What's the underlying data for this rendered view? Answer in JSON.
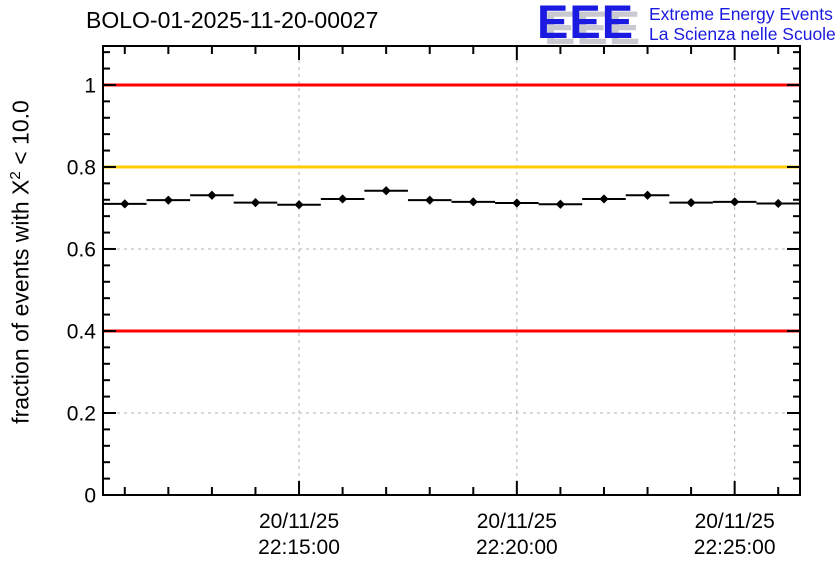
{
  "logo": {
    "letters": "EEE",
    "tagline1": "Extreme Energy Events",
    "tagline2": "La Scienza nelle Scuole",
    "text_color": "#1a1ae0",
    "shadow_color": "#c9c9d2"
  },
  "chart_data": {
    "type": "scatter",
    "title": "BOLO-01-2025-11-20-00027",
    "ylabel": "fraction of events with X² < 10.0",
    "ylabel_prefix": "fraction of events with X",
    "ylabel_sup": "2",
    "ylabel_suffix": " < 10.0",
    "xlabel": "",
    "ylim": [
      0,
      1.095
    ],
    "xlim_minutes": [
      0,
      16
    ],
    "grid": "dashed-at-major-ticks",
    "legend": "none",
    "axis_color": "#000000",
    "grid_color": "#b0b0b0",
    "y_ticks_major": [
      {
        "v": 0.0,
        "label": "0"
      },
      {
        "v": 0.2,
        "label": "0.2"
      },
      {
        "v": 0.4,
        "label": "0.4"
      },
      {
        "v": 0.6,
        "label": "0.6"
      },
      {
        "v": 0.8,
        "label": "0.8"
      },
      {
        "v": 1.0,
        "label": "1"
      }
    ],
    "y_minor_step": 0.04,
    "x_ticks_major": [
      {
        "m": 4.5,
        "date": "20/11/25",
        "time": "22:15:00"
      },
      {
        "m": 9.5,
        "date": "20/11/25",
        "time": "22:20:00"
      },
      {
        "m": 14.5,
        "date": "20/11/25",
        "time": "22:25:00"
      }
    ],
    "x_minor_step_minutes": 1,
    "x_minor_tick_start": 0.5,
    "reference_lines": [
      {
        "y": 1.0,
        "color": "#ff0000"
      },
      {
        "y": 0.8,
        "color": "#ffcc00"
      },
      {
        "y": 0.4,
        "color": "#ff0000"
      }
    ],
    "series": [
      {
        "name": "fraction of events with chi2 < 10",
        "color": "#000000",
        "marker": "filled-diamond",
        "y_err": 0.005,
        "x_err_minutes": 0.5,
        "points": [
          {
            "t": "22:11:00",
            "m": 0.5,
            "v": 0.71
          },
          {
            "t": "22:12:00",
            "m": 1.5,
            "v": 0.719
          },
          {
            "t": "22:13:00",
            "m": 2.5,
            "v": 0.731
          },
          {
            "t": "22:14:00",
            "m": 3.5,
            "v": 0.713
          },
          {
            "t": "22:15:00",
            "m": 4.5,
            "v": 0.708
          },
          {
            "t": "22:16:00",
            "m": 5.5,
            "v": 0.722
          },
          {
            "t": "22:17:00",
            "m": 6.5,
            "v": 0.742
          },
          {
            "t": "22:18:00",
            "m": 7.5,
            "v": 0.719
          },
          {
            "t": "22:19:00",
            "m": 8.5,
            "v": 0.715
          },
          {
            "t": "22:20:00",
            "m": 9.5,
            "v": 0.712
          },
          {
            "t": "22:21:00",
            "m": 10.5,
            "v": 0.709
          },
          {
            "t": "22:22:00",
            "m": 11.5,
            "v": 0.722
          },
          {
            "t": "22:23:00",
            "m": 12.5,
            "v": 0.731
          },
          {
            "t": "22:24:00",
            "m": 13.5,
            "v": 0.713
          },
          {
            "t": "22:25:00",
            "m": 14.5,
            "v": 0.715
          },
          {
            "t": "22:26:00",
            "m": 15.5,
            "v": 0.711
          }
        ]
      }
    ]
  }
}
